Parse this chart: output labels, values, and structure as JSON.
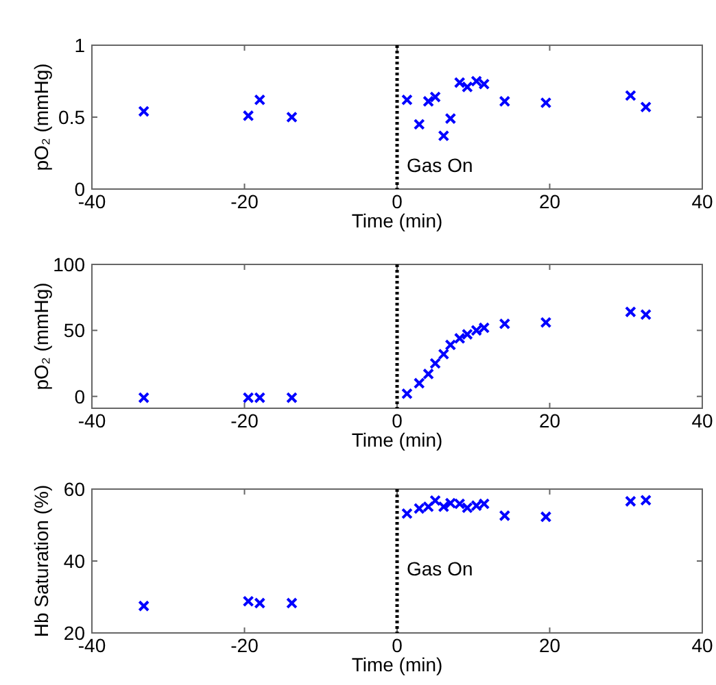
{
  "chart_data": [
    {
      "type": "scatter",
      "ylabel": "pO₂ (mmHg)",
      "xlabel": "Time (min)",
      "marker": "cross",
      "grid": false,
      "xlim": [
        -40,
        40
      ],
      "xticks": [
        -40,
        -20,
        0,
        20,
        40
      ],
      "ylim": [
        0,
        1
      ],
      "yticks": [
        0,
        0.5,
        1
      ],
      "ref_lines": [
        {
          "axis": "x",
          "value": 0,
          "label": "Gas On",
          "line_style": "dotted",
          "color": "#000000"
        }
      ],
      "series": [
        {
          "color": "#0000ff",
          "x": [
            -33.2,
            -19.5,
            -18,
            -13.8,
            1.3,
            2.9,
            4.1,
            5,
            6.1,
            7,
            8.2,
            9.2,
            10.4,
            11.4,
            14.1,
            19.5,
            30.6,
            32.6
          ],
          "values": [
            0.54,
            0.51,
            0.62,
            0.5,
            0.62,
            0.45,
            0.61,
            0.64,
            0.37,
            0.49,
            0.74,
            0.71,
            0.75,
            0.73,
            0.61,
            0.6,
            0.65,
            0.57
          ]
        }
      ]
    },
    {
      "type": "scatter",
      "ylabel": "pO₂ (mmHg)",
      "xlabel": "Time (min)",
      "marker": "cross",
      "grid": false,
      "xlim": [
        -40,
        40
      ],
      "xticks": [
        -40,
        -20,
        0,
        20,
        40
      ],
      "ylim": [
        -9,
        100
      ],
      "yticks": [
        0,
        50,
        100
      ],
      "ref_lines": [
        {
          "axis": "x",
          "value": 0,
          "label": null,
          "line_style": "dotted",
          "color": "#000000"
        }
      ],
      "series": [
        {
          "color": "#0000ff",
          "x": [
            -33.2,
            -19.5,
            -18,
            -13.8,
            1.3,
            2.9,
            4.1,
            5,
            6.1,
            7,
            8.2,
            9.2,
            10.4,
            11.4,
            14.1,
            19.5,
            30.6,
            32.6
          ],
          "values": [
            -1,
            -1,
            -1,
            -1,
            2,
            10,
            17,
            25,
            32,
            39,
            44,
            47,
            50,
            52,
            55,
            56,
            64,
            62
          ]
        }
      ]
    },
    {
      "type": "scatter",
      "ylabel": "Hb Saturation (%)",
      "xlabel": "Time (min)",
      "marker": "cross",
      "grid": false,
      "xlim": [
        -40,
        40
      ],
      "xticks": [
        -40,
        -20,
        0,
        20,
        40
      ],
      "ylim": [
        20,
        60
      ],
      "yticks": [
        20,
        40,
        60
      ],
      "ref_lines": [
        {
          "axis": "x",
          "value": 0,
          "label": "Gas On",
          "line_style": "dotted",
          "color": "#000000"
        }
      ],
      "series": [
        {
          "color": "#0000ff",
          "x": [
            -33.2,
            -19.5,
            -18,
            -13.8,
            1.3,
            2.9,
            4.1,
            5,
            6.1,
            7,
            8.2,
            9.2,
            10.4,
            11.4,
            14.1,
            19.5,
            30.6,
            32.6
          ],
          "values": [
            27.5,
            28.8,
            28.3,
            28.3,
            53.2,
            54.6,
            55.1,
            56.8,
            55.1,
            56.1,
            55.9,
            54.8,
            55.4,
            55.9,
            52.6,
            52.3,
            56.6,
            56.9
          ]
        }
      ]
    }
  ]
}
